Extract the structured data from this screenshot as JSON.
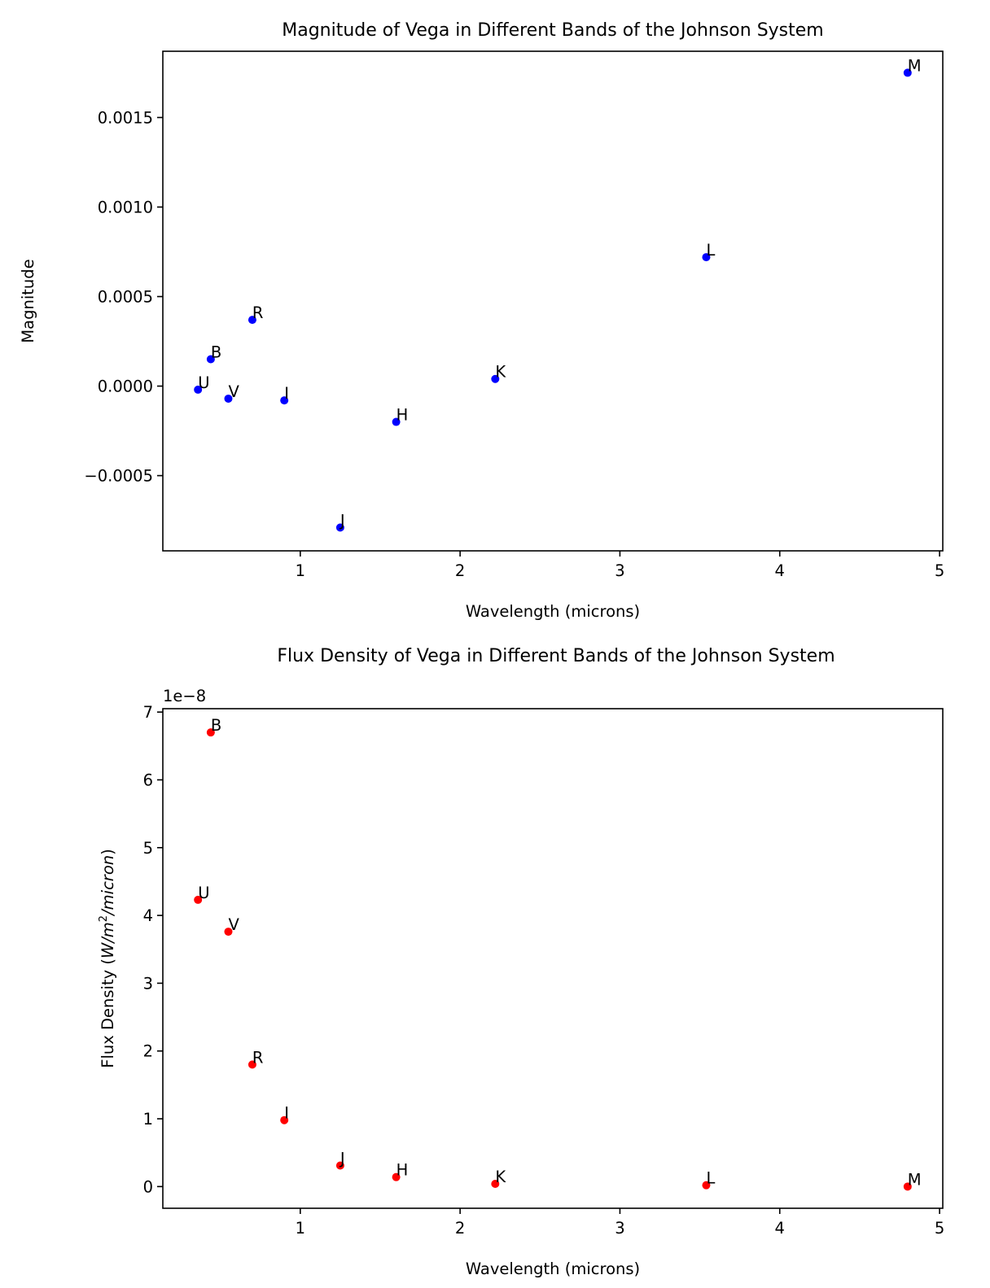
{
  "chart_data": [
    {
      "type": "scatter",
      "title": "Magnitude of Vega in Different Bands of the Johnson System",
      "xlabel": "Wavelength (microns)",
      "ylabel": "Magnitude",
      "xlim": [
        0.14,
        5.02
      ],
      "ylim": [
        -0.00092,
        0.00187
      ],
      "x_ticks": [
        1,
        2,
        3,
        4,
        5
      ],
      "x_tick_labels": [
        "1",
        "2",
        "3",
        "4",
        "5"
      ],
      "y_ticks": [
        -0.0005,
        0.0,
        0.0005,
        0.001,
        0.0015
      ],
      "y_tick_labels": [
        "−0.0005",
        "0.0000",
        "0.0005",
        "0.0010",
        "0.0015"
      ],
      "offset_text": "",
      "grid": false,
      "color": "#0000ff",
      "points": [
        {
          "band": "U",
          "x": 0.36,
          "y": -2e-05
        },
        {
          "band": "B",
          "x": 0.44,
          "y": 0.00015
        },
        {
          "band": "V",
          "x": 0.55,
          "y": -7e-05
        },
        {
          "band": "R",
          "x": 0.7,
          "y": 0.00037
        },
        {
          "band": "I",
          "x": 0.9,
          "y": -8e-05
        },
        {
          "band": "J",
          "x": 1.25,
          "y": -0.00079
        },
        {
          "band": "H",
          "x": 1.6,
          "y": -0.0002
        },
        {
          "band": "K",
          "x": 2.22,
          "y": 4e-05
        },
        {
          "band": "L",
          "x": 3.54,
          "y": 0.00072
        },
        {
          "band": "M",
          "x": 4.8,
          "y": 0.00175
        }
      ]
    },
    {
      "type": "scatter",
      "title": "Flux Density of Vega in Different Bands of the Johnson System",
      "xlabel": "Wavelength (microns)",
      "ylabel_plain": "Flux Density (",
      "ylabel_math": "W/m",
      "ylabel_sup": "2",
      "ylabel_math2": "/micron",
      "ylabel_close": ")",
      "xlim": [
        0.14,
        5.02
      ],
      "ylim": [
        -0.32,
        7.05
      ],
      "x_ticks": [
        1,
        2,
        3,
        4,
        5
      ],
      "x_tick_labels": [
        "1",
        "2",
        "3",
        "4",
        "5"
      ],
      "y_ticks": [
        0,
        1,
        2,
        3,
        4,
        5,
        6,
        7
      ],
      "y_tick_labels": [
        "0",
        "1",
        "2",
        "3",
        "4",
        "5",
        "6",
        "7"
      ],
      "offset_text": "1e−8",
      "grid": false,
      "color": "#ff0000",
      "points": [
        {
          "band": "U",
          "x": 0.36,
          "y": 4.23
        },
        {
          "band": "B",
          "x": 0.44,
          "y": 6.7
        },
        {
          "band": "V",
          "x": 0.55,
          "y": 3.76
        },
        {
          "band": "R",
          "x": 0.7,
          "y": 1.8
        },
        {
          "band": "I",
          "x": 0.9,
          "y": 0.98
        },
        {
          "band": "J",
          "x": 1.25,
          "y": 0.31
        },
        {
          "band": "H",
          "x": 1.6,
          "y": 0.14
        },
        {
          "band": "K",
          "x": 2.22,
          "y": 0.04
        },
        {
          "band": "L",
          "x": 3.54,
          "y": 0.02
        },
        {
          "band": "M",
          "x": 4.8,
          "y": 0.0
        }
      ]
    }
  ]
}
